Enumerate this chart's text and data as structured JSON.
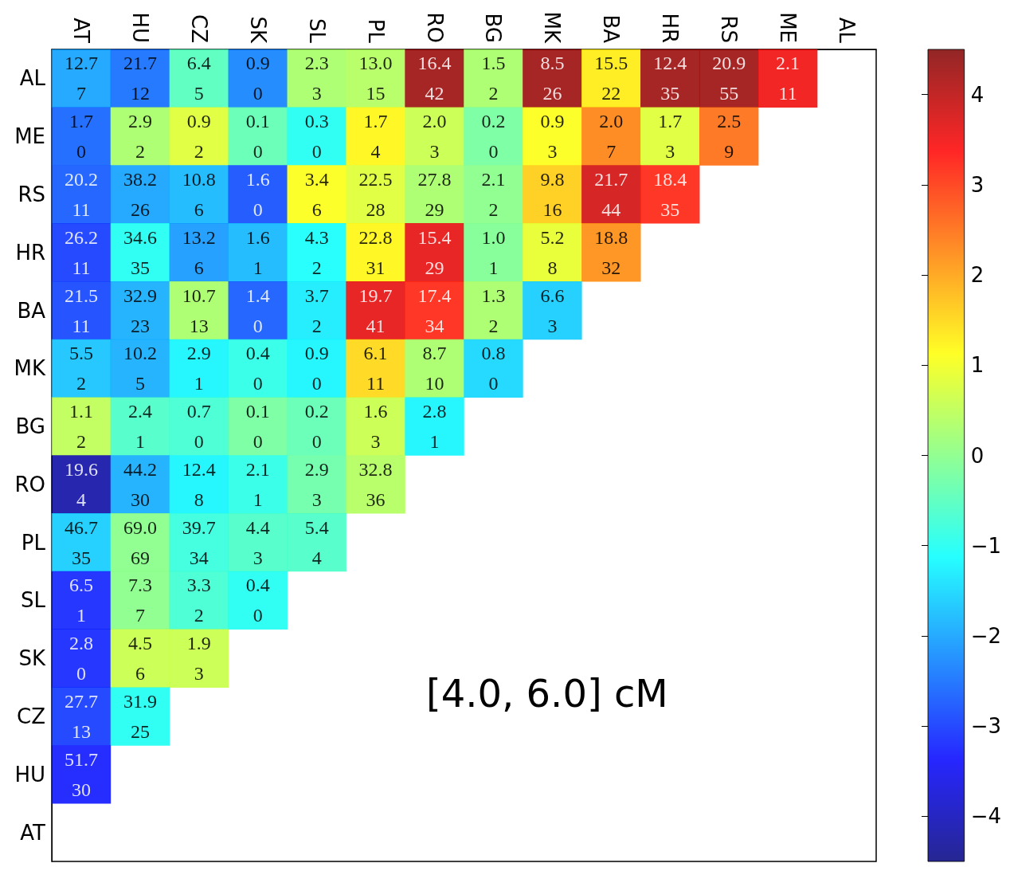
{
  "chart_data": {
    "type": "heatmap",
    "categories": [
      "AT",
      "HU",
      "CZ",
      "SK",
      "SL",
      "PL",
      "RO",
      "BG",
      "MK",
      "BA",
      "HR",
      "RS",
      "ME",
      "AL"
    ],
    "y_categories": [
      "AL",
      "ME",
      "RS",
      "HR",
      "BA",
      "MK",
      "BG",
      "RO",
      "PL",
      "SL",
      "SK",
      "CZ",
      "HU",
      "AT"
    ],
    "cells": [
      [
        -2.0,
        -2.5,
        -0.5,
        -2.3,
        0.3,
        0.4,
        4.3,
        0.3,
        4.3,
        1.3,
        4.3,
        4.3,
        3.5,
        null
      ],
      [
        -2.6,
        0.3,
        0.8,
        -0.4,
        -1.0,
        1.2,
        0.6,
        -0.2,
        1.1,
        2.3,
        0.8,
        2.5,
        null,
        null
      ],
      [
        -2.7,
        -2.0,
        -1.8,
        -2.8,
        1.1,
        0.8,
        0.3,
        0.0,
        1.6,
        3.8,
        3.2,
        null,
        null,
        null
      ],
      [
        -3.0,
        -1.0,
        -2.1,
        -1.8,
        -1.1,
        1.2,
        3.6,
        -0.1,
        0.9,
        2.2,
        null,
        null,
        null,
        null
      ],
      [
        -2.9,
        -1.9,
        0.3,
        -2.7,
        -1.3,
        3.6,
        3.2,
        0.3,
        -1.6,
        null,
        null,
        null,
        null,
        null
      ],
      [
        -1.7,
        -1.9,
        -1.2,
        -0.9,
        -1.2,
        1.5,
        0.3,
        -1.5,
        null,
        null,
        null,
        null,
        null,
        null
      ],
      [
        0.5,
        -0.6,
        -0.7,
        -0.2,
        -0.4,
        0.6,
        -1.2,
        null,
        null,
        null,
        null,
        null,
        null,
        null
      ],
      [
        -4.2,
        -1.9,
        -1.2,
        -0.9,
        -0.3,
        0.4,
        null,
        null,
        null,
        null,
        null,
        null,
        null,
        null
      ],
      [
        -1.6,
        0.0,
        -0.8,
        -0.6,
        -0.6,
        null,
        null,
        null,
        null,
        null,
        null,
        null,
        null,
        null
      ],
      [
        -3.2,
        0.0,
        -0.7,
        -1.0,
        null,
        null,
        null,
        null,
        null,
        null,
        null,
        null,
        null,
        null
      ],
      [
        -3.2,
        0.6,
        0.6,
        null,
        null,
        null,
        null,
        null,
        null,
        null,
        null,
        null,
        null,
        null
      ],
      [
        -3.0,
        -1.0,
        null,
        null,
        null,
        null,
        null,
        null,
        null,
        null,
        null,
        null,
        null,
        null
      ],
      [
        -3.3,
        null,
        null,
        null,
        null,
        null,
        null,
        null,
        null,
        null,
        null,
        null,
        null,
        null
      ],
      [
        null,
        null,
        null,
        null,
        null,
        null,
        null,
        null,
        null,
        null,
        null,
        null,
        null,
        null
      ]
    ],
    "cell_labels": [
      [
        "12.7\n7",
        "21.7\n12",
        "6.4\n5",
        "0.9\n0",
        "2.3\n3",
        "13.0\n15",
        "16.4\n42",
        "1.5\n2",
        "8.5\n26",
        "15.5\n22",
        "12.4\n35",
        "20.9\n55",
        "2.1\n11",
        null
      ],
      [
        "1.7\n0",
        "2.9\n2",
        "0.9\n2",
        "0.1\n0",
        "0.3\n0",
        "1.7\n4",
        "2.0\n3",
        "0.2\n0",
        "0.9\n3",
        "2.0\n7",
        "1.7\n3",
        "2.5\n9",
        null,
        null
      ],
      [
        "20.2\n11",
        "38.2\n26",
        "10.8\n6",
        "1.6\n0",
        "3.4\n6",
        "22.5\n28",
        "27.8\n29",
        "2.1\n2",
        "9.8\n16",
        "21.7\n44",
        "18.4\n35",
        null,
        null,
        null
      ],
      [
        "26.2\n11",
        "34.6\n35",
        "13.2\n6",
        "1.6\n1",
        "4.3\n2",
        "22.8\n31",
        "15.4\n29",
        "1.0\n1",
        "5.2\n8",
        "18.8\n32",
        null,
        null,
        null,
        null
      ],
      [
        "21.5\n11",
        "32.9\n23",
        "10.7\n13",
        "1.4\n0",
        "3.7\n2",
        "19.7\n41",
        "17.4\n34",
        "1.3\n2",
        "6.6\n3",
        null,
        null,
        null,
        null,
        null
      ],
      [
        "5.5\n2",
        "10.2\n5",
        "2.9\n1",
        "0.4\n0",
        "0.9\n0",
        "6.1\n11",
        "8.7\n10",
        "0.8\n0",
        null,
        null,
        null,
        null,
        null,
        null
      ],
      [
        "1.1\n2",
        "2.4\n1",
        "0.7\n0",
        "0.1\n0",
        "0.2\n0",
        "1.6\n3",
        "2.8\n1",
        null,
        null,
        null,
        null,
        null,
        null,
        null
      ],
      [
        "19.6\n4",
        "44.2\n30",
        "12.4\n8",
        "2.1\n1",
        "2.9\n3",
        "32.8\n36",
        null,
        null,
        null,
        null,
        null,
        null,
        null,
        null
      ],
      [
        "46.7\n35",
        "69.0\n69",
        "39.7\n34",
        "4.4\n3",
        "5.4\n4",
        null,
        null,
        null,
        null,
        null,
        null,
        null,
        null,
        null
      ],
      [
        "6.5\n1",
        "7.3\n7",
        "3.3\n2",
        "0.4\n0",
        null,
        null,
        null,
        null,
        null,
        null,
        null,
        null,
        null,
        null
      ],
      [
        "2.8\n0",
        "4.5\n6",
        "1.9\n3",
        null,
        null,
        null,
        null,
        null,
        null,
        null,
        null,
        null,
        null,
        null
      ],
      [
        "27.7\n13",
        "31.9\n25",
        null,
        null,
        null,
        null,
        null,
        null,
        null,
        null,
        null,
        null,
        null,
        null
      ],
      [
        "51.7\n30",
        null,
        null,
        null,
        null,
        null,
        null,
        null,
        null,
        null,
        null,
        null,
        null,
        null
      ],
      [
        null,
        null,
        null,
        null,
        null,
        null,
        null,
        null,
        null,
        null,
        null,
        null,
        null,
        null
      ]
    ],
    "clim": [
      -4.5,
      4.5
    ],
    "cticks": [
      {
        "value": -4,
        "label": "−4"
      },
      {
        "value": -3,
        "label": "−3"
      },
      {
        "value": -2,
        "label": "−2"
      },
      {
        "value": -1,
        "label": "−1"
      },
      0,
      1,
      2,
      3,
      4
    ],
    "annotations": [
      "[4.0, 6.0] cM"
    ]
  }
}
